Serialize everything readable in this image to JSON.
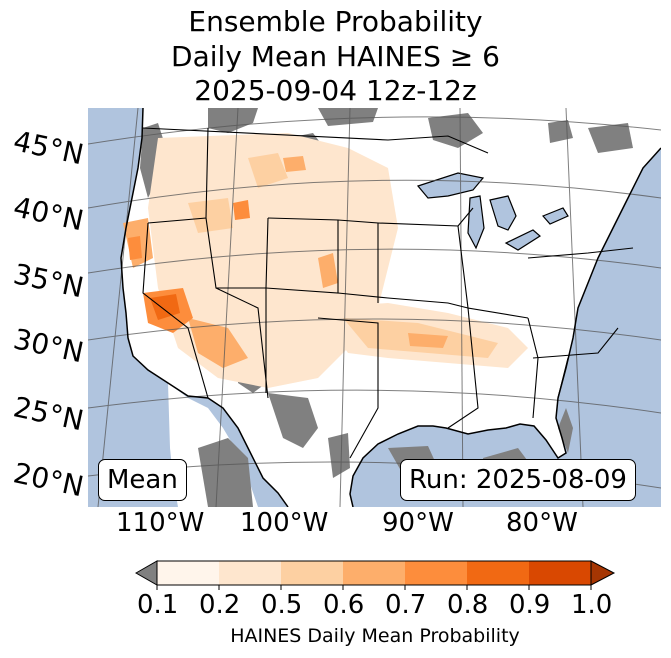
{
  "title": {
    "line1": "Ensemble Probability",
    "line2": "Daily Mean HAINES ≥ 6",
    "line3": "2025-09-04 12z-12z"
  },
  "map": {
    "latitude_labels": [
      "45°N",
      "40°N",
      "35°N",
      "30°N",
      "25°N",
      "20°N"
    ],
    "longitude_labels": [
      "110°W",
      "100°W",
      "90°W",
      "80°W"
    ],
    "colors": {
      "ocean": "#b0c4de",
      "land": "#ffffff",
      "missing_data": "#808080",
      "borders": "#000000",
      "gridlines": "#555555"
    }
  },
  "annotations": {
    "statistic": "Mean",
    "run": "Run: 2025-08-09"
  },
  "colorbar": {
    "title": "HAINES Daily Mean Probability",
    "ticks": [
      "0.1",
      "0.2",
      "0.5",
      "0.6",
      "0.7",
      "0.8",
      "0.9",
      "1.0"
    ],
    "colors": [
      "#fff5eb",
      "#fee6ce",
      "#fdd0a2",
      "#fdae6b",
      "#fd8d3c",
      "#f16913",
      "#d94801"
    ],
    "under_color": "#808080",
    "over_color": "#a63603"
  }
}
